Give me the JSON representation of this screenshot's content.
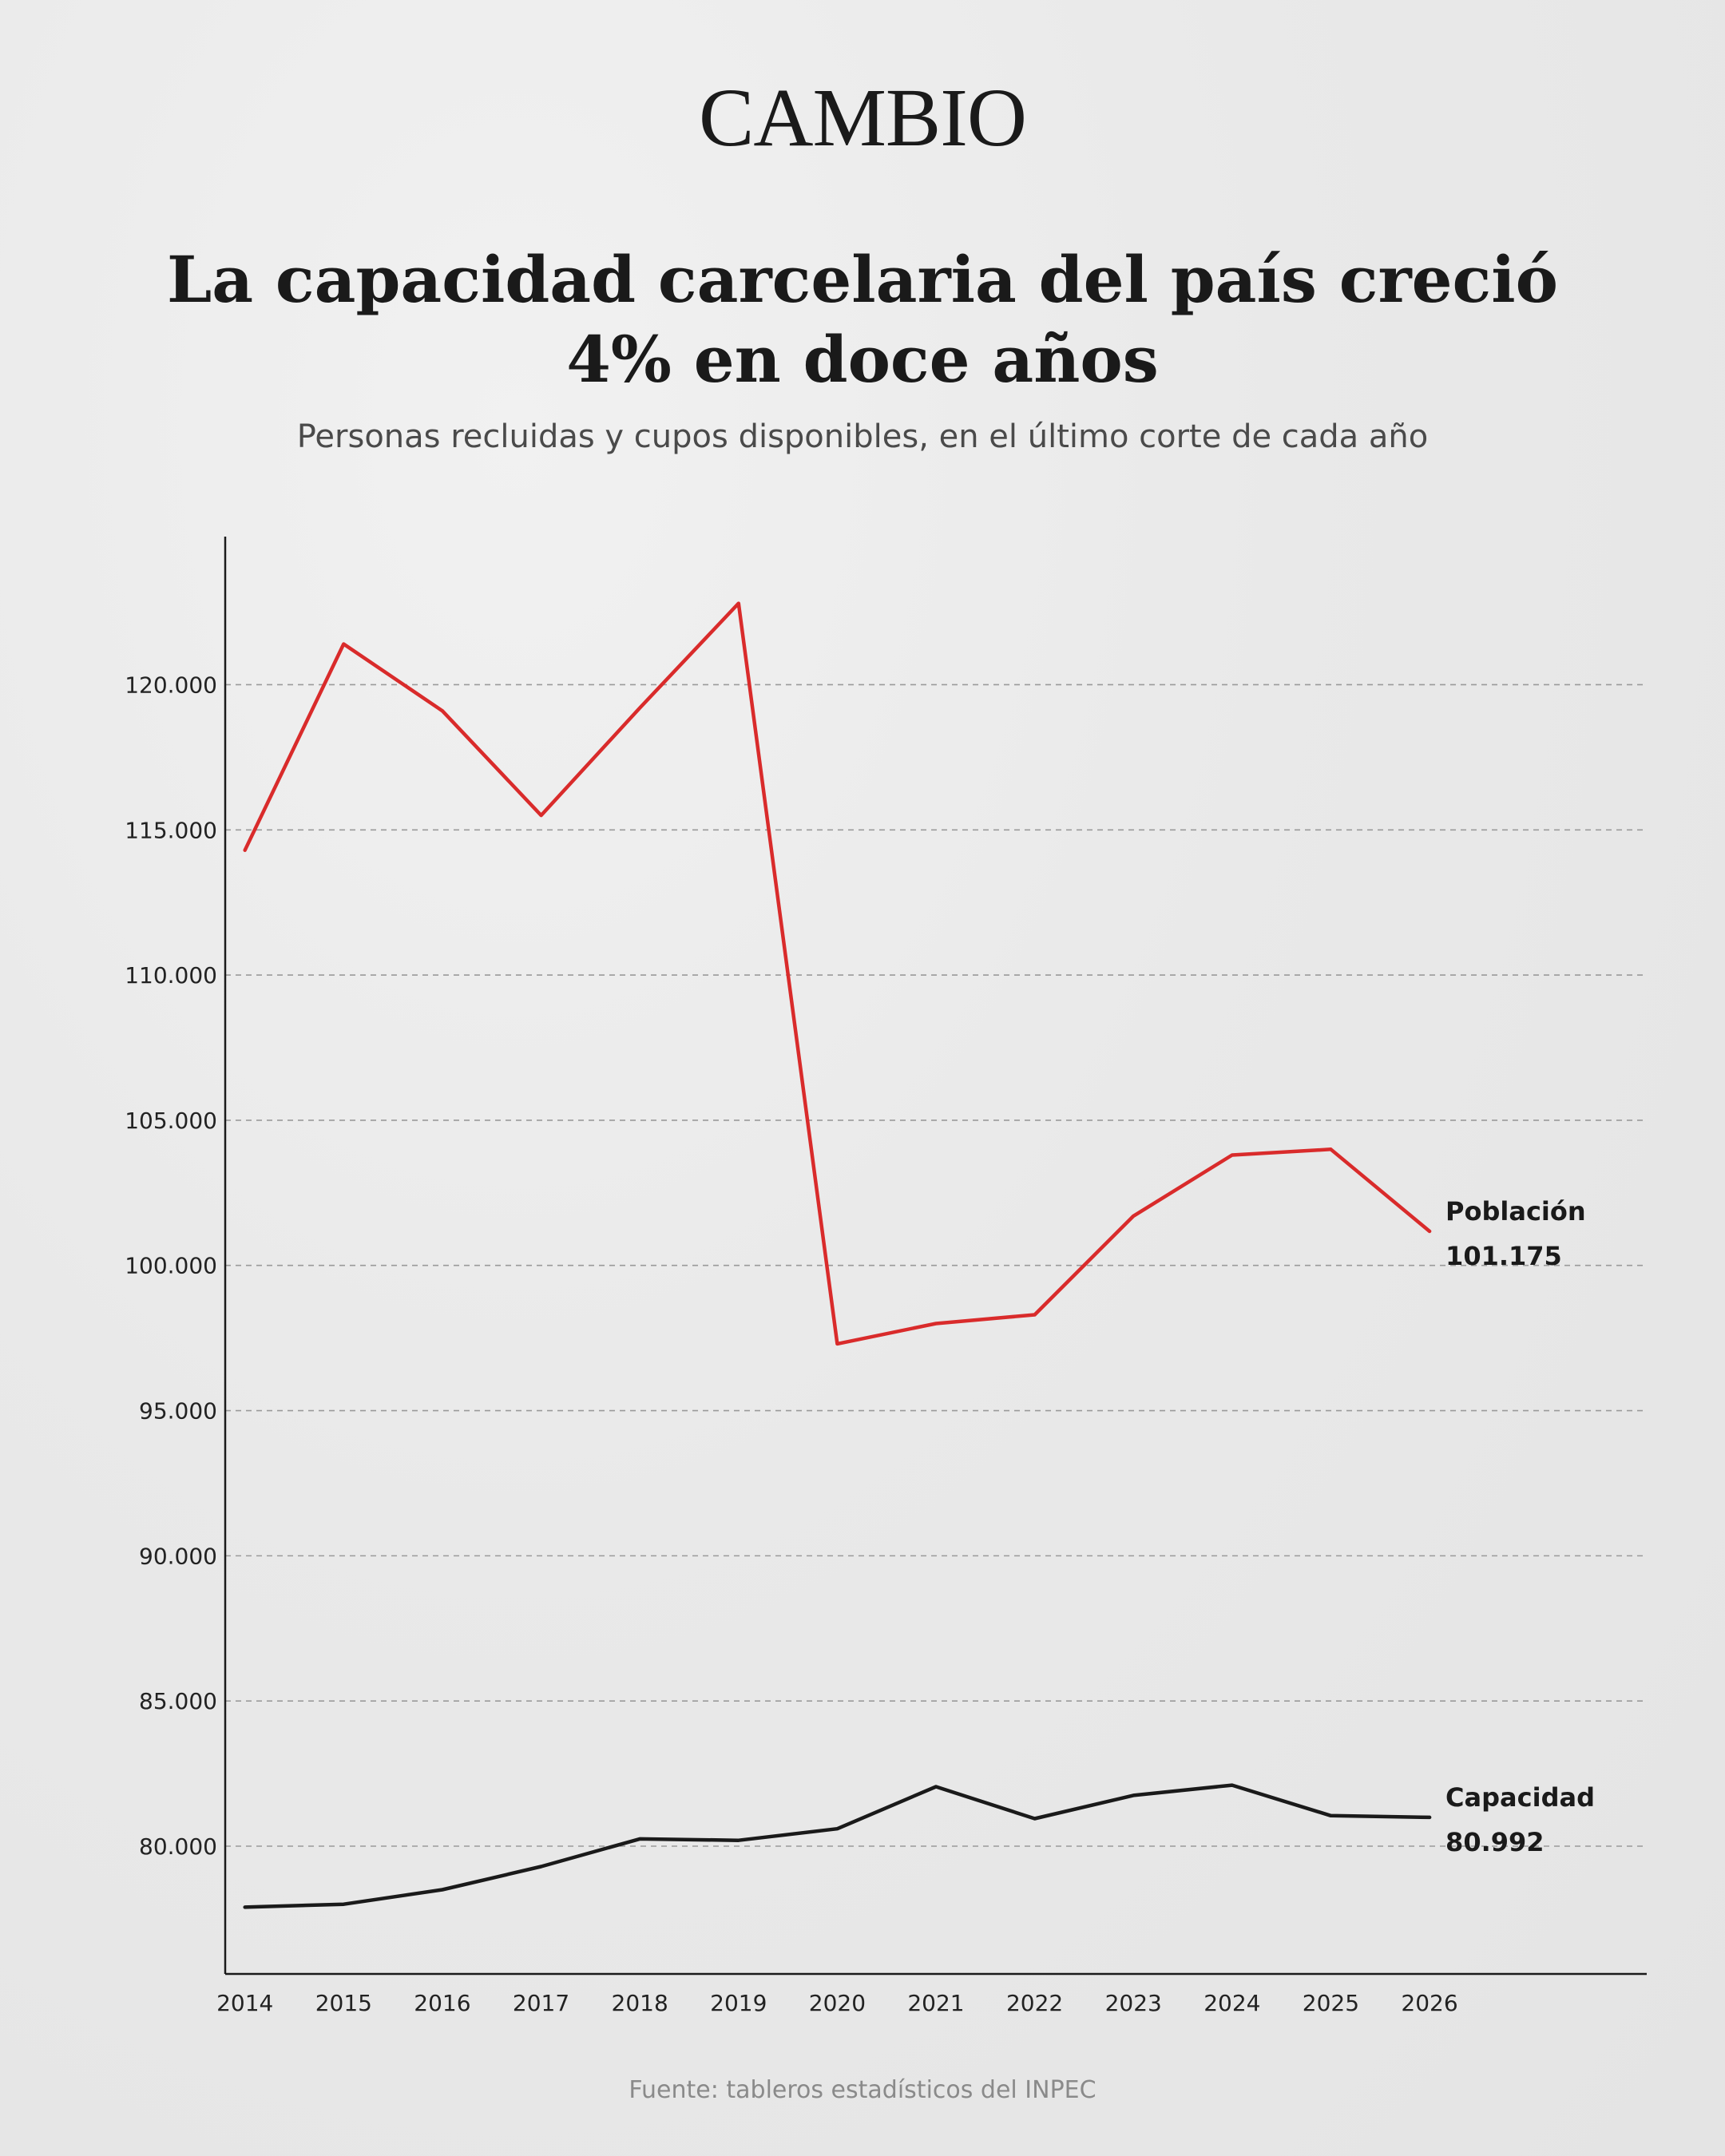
{
  "brand": {
    "logo_text": "CAMBIO"
  },
  "header": {
    "title": "La capacidad carcelaria del país creció 4% en doce años",
    "subtitle": "Personas recluidas y cupos disponibles, en el último corte de cada año"
  },
  "footer": {
    "source": "Fuente: tableros estadísticos del INPEC"
  },
  "chart_data": {
    "type": "line",
    "title": "La capacidad carcelaria del país creció 4% en doce años",
    "subtitle": "Personas recluidas y cupos disponibles, en el último corte de cada año",
    "x": [
      2014,
      2015,
      2016,
      2017,
      2018,
      2019,
      2020,
      2021,
      2022,
      2023,
      2024,
      2025,
      2026
    ],
    "x_tick_labels": [
      "2014",
      "2015",
      "2016",
      "2017",
      "2018",
      "2019",
      "2020",
      "2021",
      "2022",
      "2023",
      "2024",
      "2025",
      "2026"
    ],
    "y_ticks": [
      80000,
      85000,
      90000,
      95000,
      100000,
      105000,
      110000,
      115000,
      120000
    ],
    "y_tick_labels": [
      "80.000",
      "85.000",
      "90.000",
      "95.000",
      "100.000",
      "105.000",
      "110.000",
      "115.000",
      "120.000"
    ],
    "ylim": [
      75600,
      125100
    ],
    "xlim": [
      2013.8,
      2028.2
    ],
    "grid": true,
    "series": [
      {
        "name": "Población",
        "color": "#d92b2b",
        "values": [
          114300,
          121400,
          119100,
          115500,
          119200,
          122800,
          97300,
          98000,
          98300,
          101700,
          103800,
          104000,
          101175
        ],
        "end_label": "Población",
        "end_value_label": "101.175"
      },
      {
        "name": "Capacidad",
        "color": "#1a1a1a",
        "values": [
          77900,
          78000,
          78500,
          79300,
          80250,
          80200,
          80600,
          82050,
          80950,
          81750,
          82100,
          81050,
          80992
        ],
        "end_label": "Capacidad",
        "end_value_label": "80.992"
      }
    ]
  }
}
